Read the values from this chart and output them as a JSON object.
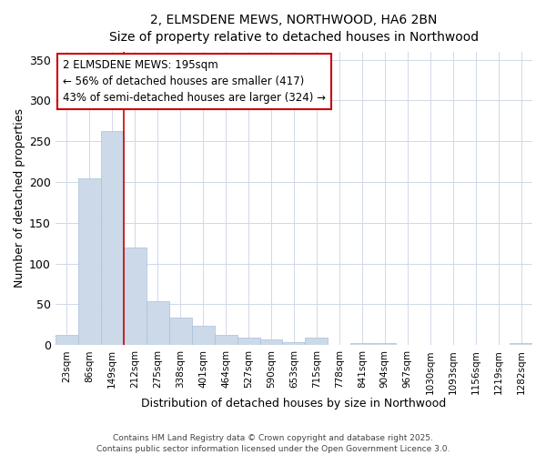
{
  "title_line1": "2, ELMSDENE MEWS, NORTHWOOD, HA6 2BN",
  "title_line2": "Size of property relative to detached houses in Northwood",
  "xlabel": "Distribution of detached houses by size in Northwood",
  "ylabel": "Number of detached properties",
  "bar_labels": [
    "23sqm",
    "86sqm",
    "149sqm",
    "212sqm",
    "275sqm",
    "338sqm",
    "401sqm",
    "464sqm",
    "527sqm",
    "590sqm",
    "653sqm",
    "715sqm",
    "778sqm",
    "841sqm",
    "904sqm",
    "967sqm",
    "1030sqm",
    "1093sqm",
    "1156sqm",
    "1219sqm",
    "1282sqm"
  ],
  "bar_values": [
    12,
    205,
    262,
    120,
    54,
    34,
    24,
    12,
    9,
    7,
    4,
    9,
    0,
    3,
    3,
    0,
    0,
    0,
    0,
    0,
    2
  ],
  "bar_color": "#ccd9e8",
  "bar_edgecolor": "#a8c0d8",
  "annotation_text": "2 ELMSDENE MEWS: 195sqm\n← 56% of detached houses are smaller (417)\n43% of semi-detached houses are larger (324) →",
  "annotation_box_color": "#ffffff",
  "annotation_box_edge": "#cc0000",
  "vline_color": "#cc0000",
  "ylim": [
    0,
    360
  ],
  "yticks": [
    0,
    50,
    100,
    150,
    200,
    250,
    300,
    350
  ],
  "background_color": "#ffffff",
  "grid_color": "#d0d8e8",
  "footer_line1": "Contains HM Land Registry data © Crown copyright and database right 2025.",
  "footer_line2": "Contains public sector information licensed under the Open Government Licence 3.0."
}
